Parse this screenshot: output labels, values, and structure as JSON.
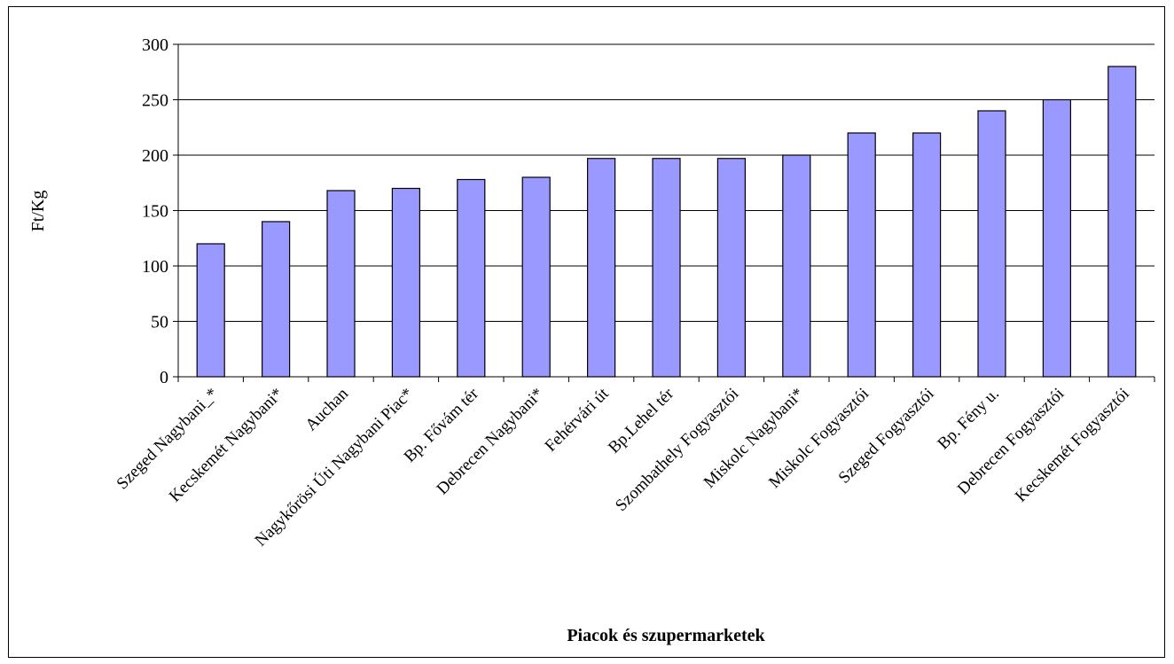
{
  "chart_data": {
    "type": "bar",
    "title": "",
    "xlabel": "Piacok és szupermarketek",
    "ylabel": "Ft/Kg",
    "ylim": [
      0,
      300
    ],
    "yticks": [
      0,
      50,
      100,
      150,
      200,
      250,
      300
    ],
    "grid": true,
    "legend": "none",
    "bar_color": "#9999ff",
    "categories": [
      "Szeged Nagybani_*",
      "Kecskemét Nagybani*",
      "Auchan",
      "Nagykőrösi Úti Nagybani Piac*",
      "Bp. Fővám tér",
      "Debrecen Nagybani*",
      "Fehérvári út",
      "Bp.Lehel tér",
      "Szombathely Fogyasztói",
      "Miskolc  Nagybani*",
      "Miskolc Fogyasztói",
      "Szeged Fogyasztói",
      "Bp. Fény u.",
      "Debrecen  Fogyasztói",
      "Kecskemét Fogyasztói"
    ],
    "values": [
      120,
      140,
      168,
      170,
      178,
      180,
      197,
      197,
      197,
      200,
      220,
      220,
      240,
      250,
      280
    ]
  }
}
